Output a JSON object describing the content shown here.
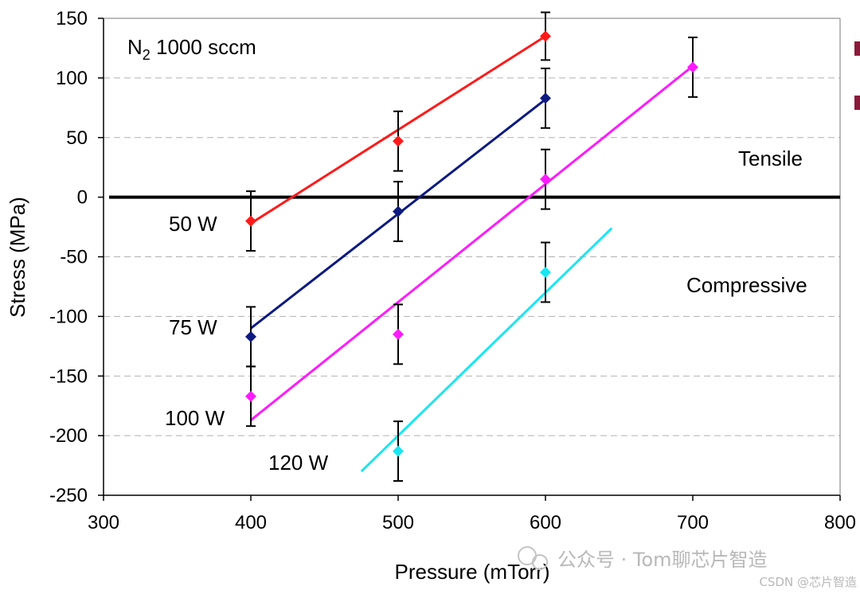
{
  "chart_data": {
    "type": "scatter",
    "title": "",
    "annotation": {
      "main": "N",
      "sub": "2",
      "rest": " 1000 sccm"
    },
    "xlabel": "Pressure (mTorr)",
    "ylabel": "Stress (MPa)",
    "xlim": [
      300,
      800
    ],
    "ylim": [
      -250,
      150
    ],
    "xticks": [
      300,
      400,
      500,
      600,
      700,
      800
    ],
    "yticks": [
      150,
      100,
      50,
      0,
      -50,
      -100,
      -150,
      -200,
      -250
    ],
    "grid": true,
    "zero_line": true,
    "region_labels": {
      "tensile": "Tensile",
      "compressive": "Compressive"
    },
    "series": [
      {
        "name": "50 W",
        "color": "#ff1a1a",
        "points": [
          {
            "x": 400,
            "y": -20,
            "err": 25
          },
          {
            "x": 500,
            "y": 47,
            "err": 25
          },
          {
            "x": 600,
            "y": 135,
            "err": 20
          }
        ],
        "fit": [
          [
            400,
            -22
          ],
          [
            600,
            135
          ]
        ]
      },
      {
        "name": "75 W",
        "color": "#0d1a80",
        "points": [
          {
            "x": 400,
            "y": -117,
            "err": 25
          },
          {
            "x": 500,
            "y": -12,
            "err": 25
          },
          {
            "x": 600,
            "y": 83,
            "err": 25
          }
        ],
        "fit": [
          [
            400,
            -110
          ],
          [
            600,
            82
          ]
        ]
      },
      {
        "name": "100 W",
        "color": "#ff1aff",
        "points": [
          {
            "x": 400,
            "y": -167,
            "err": 25
          },
          {
            "x": 500,
            "y": -115,
            "err": 25
          },
          {
            "x": 600,
            "y": 15,
            "err": 25
          },
          {
            "x": 700,
            "y": 109,
            "err": 25
          }
        ],
        "fit": [
          [
            400,
            -187
          ],
          [
            700,
            110
          ]
        ]
      },
      {
        "name": "120 W",
        "color": "#1ae6f2",
        "points": [
          {
            "x": 500,
            "y": -213,
            "err": 25
          },
          {
            "x": 600,
            "y": -63,
            "err": 25
          }
        ],
        "fit": [
          [
            475,
            -230
          ],
          [
            645,
            -26
          ]
        ]
      }
    ],
    "legend_markers": [
      "#8b1a3a",
      "#8b1a3a"
    ]
  },
  "watermark": {
    "main": "公众号 · Tom聊芯片智造",
    "sub": "CSDN @芯片智造"
  }
}
